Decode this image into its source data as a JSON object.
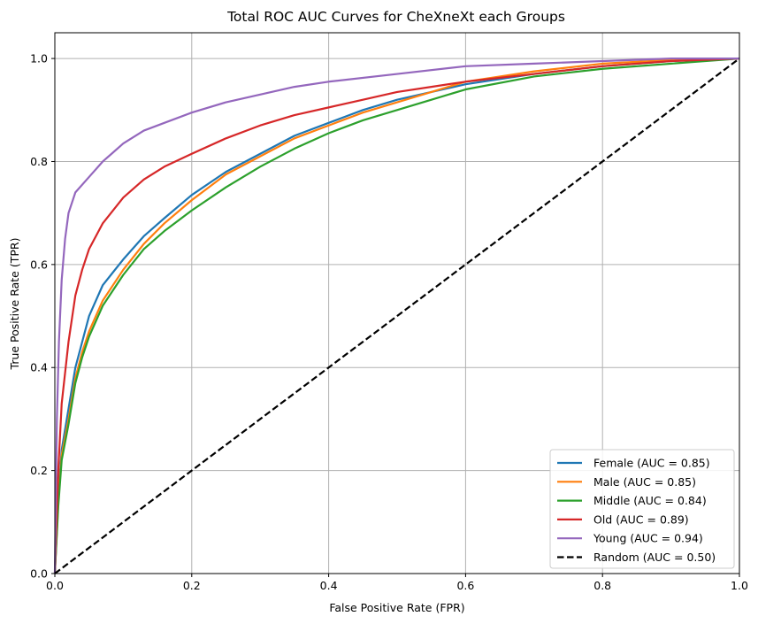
{
  "chart_data": {
    "type": "line",
    "title": "Total ROC AUC Curves for CheXneXt each Groups",
    "xlabel": "False Positive Rate (FPR)",
    "ylabel": "True Positive Rate (TPR)",
    "xlim": [
      0.0,
      1.0
    ],
    "ylim": [
      0.0,
      1.05
    ],
    "x_ticks": [
      "0.0",
      "0.2",
      "0.4",
      "0.6",
      "0.8",
      "1.0"
    ],
    "y_ticks": [
      "0.0",
      "0.2",
      "0.4",
      "0.6",
      "0.8",
      "1.0"
    ],
    "grid": true,
    "legend_position": "lower-right",
    "series": [
      {
        "name": "Female (AUC = 0.85)",
        "color": "#1f77b4",
        "dash": "solid",
        "points": [
          [
            0,
            0
          ],
          [
            0.005,
            0.15
          ],
          [
            0.01,
            0.24
          ],
          [
            0.02,
            0.32
          ],
          [
            0.03,
            0.4
          ],
          [
            0.04,
            0.45
          ],
          [
            0.05,
            0.5
          ],
          [
            0.07,
            0.56
          ],
          [
            0.1,
            0.61
          ],
          [
            0.13,
            0.655
          ],
          [
            0.16,
            0.69
          ],
          [
            0.2,
            0.735
          ],
          [
            0.25,
            0.78
          ],
          [
            0.3,
            0.815
          ],
          [
            0.35,
            0.85
          ],
          [
            0.4,
            0.875
          ],
          [
            0.45,
            0.9
          ],
          [
            0.5,
            0.92
          ],
          [
            0.55,
            0.935
          ],
          [
            0.6,
            0.95
          ],
          [
            0.7,
            0.97
          ],
          [
            0.8,
            0.985
          ],
          [
            0.9,
            0.995
          ],
          [
            1.0,
            1.0
          ]
        ]
      },
      {
        "name": "Male (AUC = 0.85)",
        "color": "#ff7f0e",
        "dash": "solid",
        "points": [
          [
            0,
            0
          ],
          [
            0.005,
            0.14
          ],
          [
            0.01,
            0.23
          ],
          [
            0.02,
            0.3
          ],
          [
            0.03,
            0.38
          ],
          [
            0.04,
            0.43
          ],
          [
            0.05,
            0.47
          ],
          [
            0.07,
            0.53
          ],
          [
            0.1,
            0.59
          ],
          [
            0.13,
            0.64
          ],
          [
            0.16,
            0.68
          ],
          [
            0.2,
            0.725
          ],
          [
            0.25,
            0.775
          ],
          [
            0.3,
            0.81
          ],
          [
            0.35,
            0.845
          ],
          [
            0.4,
            0.87
          ],
          [
            0.45,
            0.895
          ],
          [
            0.5,
            0.915
          ],
          [
            0.55,
            0.935
          ],
          [
            0.6,
            0.955
          ],
          [
            0.7,
            0.975
          ],
          [
            0.8,
            0.99
          ],
          [
            0.9,
            0.997
          ],
          [
            1.0,
            1.0
          ]
        ]
      },
      {
        "name": "Middle (AUC = 0.84)",
        "color": "#2ca02c",
        "dash": "solid",
        "points": [
          [
            0,
            0
          ],
          [
            0.005,
            0.13
          ],
          [
            0.01,
            0.22
          ],
          [
            0.02,
            0.29
          ],
          [
            0.03,
            0.37
          ],
          [
            0.04,
            0.42
          ],
          [
            0.05,
            0.46
          ],
          [
            0.07,
            0.52
          ],
          [
            0.1,
            0.58
          ],
          [
            0.13,
            0.63
          ],
          [
            0.16,
            0.665
          ],
          [
            0.2,
            0.705
          ],
          [
            0.25,
            0.75
          ],
          [
            0.3,
            0.79
          ],
          [
            0.35,
            0.825
          ],
          [
            0.4,
            0.855
          ],
          [
            0.45,
            0.88
          ],
          [
            0.5,
            0.9
          ],
          [
            0.55,
            0.92
          ],
          [
            0.6,
            0.94
          ],
          [
            0.7,
            0.965
          ],
          [
            0.8,
            0.98
          ],
          [
            0.9,
            0.99
          ],
          [
            1.0,
            1.0
          ]
        ]
      },
      {
        "name": "Old (AUC = 0.89)",
        "color": "#d62728",
        "dash": "solid",
        "points": [
          [
            0,
            0
          ],
          [
            0.005,
            0.2
          ],
          [
            0.01,
            0.33
          ],
          [
            0.02,
            0.45
          ],
          [
            0.03,
            0.54
          ],
          [
            0.04,
            0.59
          ],
          [
            0.05,
            0.63
          ],
          [
            0.07,
            0.68
          ],
          [
            0.1,
            0.73
          ],
          [
            0.13,
            0.765
          ],
          [
            0.16,
            0.79
          ],
          [
            0.2,
            0.815
          ],
          [
            0.25,
            0.845
          ],
          [
            0.3,
            0.87
          ],
          [
            0.35,
            0.89
          ],
          [
            0.4,
            0.905
          ],
          [
            0.45,
            0.92
          ],
          [
            0.5,
            0.935
          ],
          [
            0.55,
            0.945
          ],
          [
            0.6,
            0.955
          ],
          [
            0.7,
            0.97
          ],
          [
            0.8,
            0.985
          ],
          [
            0.9,
            0.995
          ],
          [
            1.0,
            1.0
          ]
        ]
      },
      {
        "name": "Young (AUC = 0.94)",
        "color": "#9467bd",
        "dash": "solid",
        "points": [
          [
            0,
            0
          ],
          [
            0.003,
            0.3
          ],
          [
            0.006,
            0.45
          ],
          [
            0.01,
            0.57
          ],
          [
            0.015,
            0.65
          ],
          [
            0.02,
            0.7
          ],
          [
            0.03,
            0.74
          ],
          [
            0.05,
            0.77
          ],
          [
            0.07,
            0.8
          ],
          [
            0.1,
            0.835
          ],
          [
            0.13,
            0.86
          ],
          [
            0.16,
            0.875
          ],
          [
            0.2,
            0.895
          ],
          [
            0.25,
            0.915
          ],
          [
            0.3,
            0.93
          ],
          [
            0.35,
            0.945
          ],
          [
            0.4,
            0.955
          ],
          [
            0.5,
            0.97
          ],
          [
            0.6,
            0.985
          ],
          [
            0.7,
            0.99
          ],
          [
            0.8,
            0.995
          ],
          [
            0.9,
            1.0
          ],
          [
            1.0,
            1.0
          ]
        ]
      },
      {
        "name": "Random (AUC = 0.50)",
        "color": "#000000",
        "dash": "dashed",
        "points": [
          [
            0,
            0
          ],
          [
            1,
            1
          ]
        ]
      }
    ]
  }
}
